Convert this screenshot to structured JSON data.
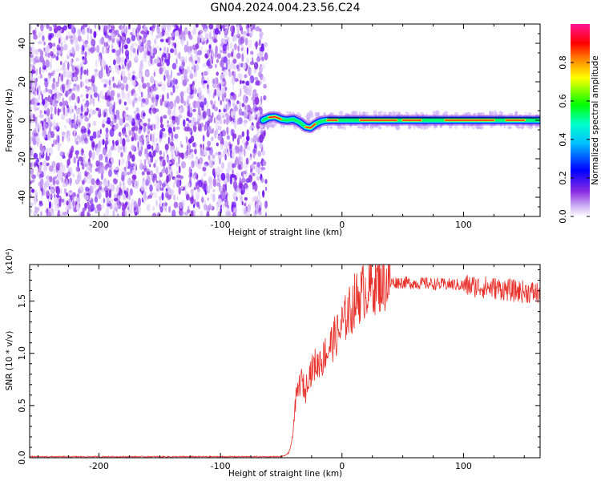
{
  "title": "GN04.2024.004.23.56.C24",
  "chart_data": [
    {
      "type": "heatmap",
      "xlabel": "Height of straight line (km)",
      "ylabel": "Frequency (Hz)",
      "xlim": [
        -257,
        163
      ],
      "ylim": [
        -50,
        50
      ],
      "x_ticks": [
        -200,
        -100,
        0,
        100
      ],
      "x_tick_labels": [
        "-200",
        "-100",
        "0",
        "100"
      ],
      "y_ticks": [
        -40,
        -20,
        0,
        20,
        40
      ],
      "y_tick_labels": [
        "-40",
        "-20",
        "0",
        "20",
        "40"
      ],
      "noise_region_x": [
        -257,
        -65
      ],
      "signal_ridge": [
        {
          "x": -65,
          "y": 0
        },
        {
          "x": -60,
          "y": 1.5
        },
        {
          "x": -55,
          "y": 1.8
        },
        {
          "x": -50,
          "y": 0.5
        },
        {
          "x": -45,
          "y": 0
        },
        {
          "x": -40,
          "y": 0.5
        },
        {
          "x": -35,
          "y": -1
        },
        {
          "x": -30,
          "y": -3.5
        },
        {
          "x": -26,
          "y": -4
        },
        {
          "x": -22,
          "y": -2
        },
        {
          "x": -17,
          "y": -0.5
        },
        {
          "x": -12,
          "y": 0
        },
        {
          "x": 0,
          "y": 0
        },
        {
          "x": 50,
          "y": 0
        },
        {
          "x": 100,
          "y": 0
        },
        {
          "x": 163,
          "y": 0
        }
      ],
      "colorbar": {
        "label": "Normalized spectral amplitude",
        "range": [
          0,
          1
        ],
        "ticks": [
          0.0,
          0.2,
          0.4,
          0.6,
          0.8
        ],
        "tick_labels": [
          "0.0",
          "0.2",
          "0.4",
          "0.6",
          "0.8"
        ],
        "colors": [
          "#ffffff",
          "#8a2be2",
          "#0000ff",
          "#00ffff",
          "#00ff00",
          "#ffff00",
          "#ff0000",
          "#ff1493"
        ]
      },
      "grid": false
    },
    {
      "type": "line",
      "xlabel": "Height of straight line (km)",
      "ylabel": "SNR (10 * v/v)",
      "y_multiplier": "(x10⁴)",
      "xlim": [
        -257,
        163
      ],
      "ylim": [
        0,
        1.85
      ],
      "x_ticks": [
        -200,
        -100,
        0,
        100
      ],
      "x_tick_labels": [
        "-200",
        "-100",
        "0",
        "100"
      ],
      "y_ticks": [
        0.0,
        0.5,
        1.0,
        1.5
      ],
      "y_tick_labels": [
        "0.0",
        "0.5",
        "1.0",
        "1.5"
      ],
      "series": [
        {
          "color": "#e8302a",
          "x": [
            -257,
            -200,
            -100,
            -50,
            -45,
            -42,
            -40,
            -38,
            -36,
            -34,
            -32,
            -30,
            -28,
            -26,
            -24,
            -22,
            -20,
            -18,
            -16,
            -14,
            -12,
            -10,
            -8,
            -6,
            -4,
            -2,
            0,
            2,
            4,
            6,
            8,
            10,
            12,
            14,
            16,
            18,
            20,
            22,
            24,
            26,
            28,
            30,
            32,
            35,
            40,
            45,
            50,
            60,
            70,
            80,
            90,
            100,
            110,
            120,
            130,
            140,
            150,
            160,
            163
          ],
          "y": [
            0.01,
            0.01,
            0.01,
            0.01,
            0.03,
            0.1,
            0.3,
            0.55,
            0.65,
            0.75,
            0.7,
            0.62,
            0.8,
            0.82,
            0.85,
            0.9,
            0.88,
            0.95,
            0.92,
            1.02,
            1.0,
            1.08,
            1.1,
            1.15,
            1.18,
            1.2,
            1.28,
            1.3,
            1.38,
            1.4,
            1.42,
            1.5,
            1.52,
            1.55,
            1.57,
            1.6,
            1.62,
            1.63,
            1.64,
            1.66,
            1.67,
            1.67,
            1.68,
            1.68,
            1.68,
            1.68,
            1.68,
            1.67,
            1.67,
            1.66,
            1.66,
            1.65,
            1.64,
            1.63,
            1.62,
            1.6,
            1.59,
            1.58,
            1.57
          ]
        }
      ],
      "grid": false
    }
  ]
}
